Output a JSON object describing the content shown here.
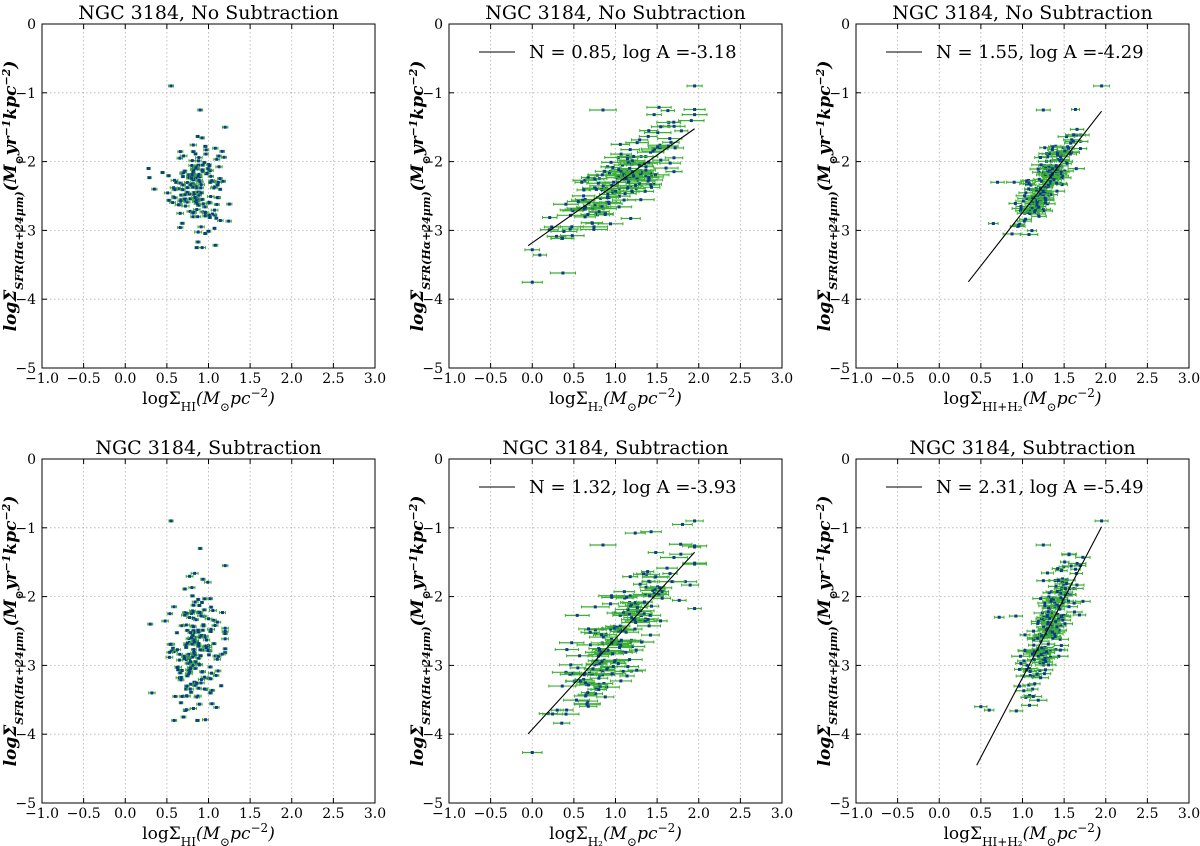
{
  "chart_data": [
    {
      "type": "scatter",
      "title": "NGC 3184, No Subtraction",
      "xlabel": "logΣ_HI(M_⊙pc^-2)",
      "ylabel": "logΣ_SFR(Hα+24μm)(M_⊙yr^-1kpc^-2)",
      "xlim": [
        -1.0,
        3.0
      ],
      "ylim": [
        -5,
        0
      ],
      "xticks": [
        "−1.0",
        "−0.5",
        "0.0",
        "0.5",
        "1.0",
        "1.5",
        "2.0",
        "2.5",
        "3.0"
      ],
      "yticks": [
        "0",
        "−1",
        "−2",
        "−3",
        "−4",
        "−5"
      ],
      "grid": true,
      "series": [
        {
          "x_center": 0.85,
          "x_spread": 0.16,
          "x_min": 0.25,
          "x_max": 1.25,
          "y_center": -2.35,
          "y_spread": 0.32,
          "y_min": -3.25,
          "y_max": -1.5,
          "count": 170,
          "xerr": 0.03,
          "extra_points": [
            [
              0.55,
              -0.9
            ],
            [
              0.9,
              -1.25
            ],
            [
              1.2,
              -1.5
            ],
            [
              0.28,
              -2.1
            ],
            [
              0.35,
              -2.4
            ]
          ]
        }
      ],
      "legend": "",
      "fit": null
    },
    {
      "type": "scatter",
      "title": "NGC 3184, No Subtraction",
      "xlabel": "logΣ_H2(M_⊙pc^-2)",
      "ylabel": "logΣ_SFR(Hα+24μm)(M_⊙yr^-1kpc^-2)",
      "xlim": [
        -1.0,
        3.0
      ],
      "ylim": [
        -5,
        0
      ],
      "xticks": [
        "−1.0",
        "−0.5",
        "0.0",
        "0.5",
        "1.0",
        "1.5",
        "2.0",
        "2.5",
        "3.0"
      ],
      "yticks": [
        "0",
        "−1",
        "−2",
        "−3",
        "−4",
        "−5"
      ],
      "grid": true,
      "series": [
        {
          "slope": 0.85,
          "intercept": -3.18,
          "x_center": 1.05,
          "x_spread": 0.38,
          "x_min": 0.0,
          "x_max": 1.95,
          "y_scatter": 0.25,
          "count": 190,
          "xerr": 0.12,
          "extra_points": [
            [
              1.95,
              -0.9
            ],
            [
              0.85,
              -1.25
            ],
            [
              1.4,
              -1.55
            ]
          ]
        }
      ],
      "legend": "N = 0.85, log A =-3.18",
      "legend_location": "upper right",
      "fit": {
        "slope": 0.85,
        "intercept": -3.18,
        "x_range": [
          -0.05,
          1.95
        ]
      }
    },
    {
      "type": "scatter",
      "title": "NGC 3184, No Subtraction",
      "xlabel": "logΣ_HI+H2(M_⊙pc^-2)",
      "ylabel": "logΣ_SFR(Hα+24μm)(M_⊙yr^-1kpc^-2)",
      "xlim": [
        -1.0,
        3.0
      ],
      "ylim": [
        -5,
        0
      ],
      "xticks": [
        "−1.0",
        "−0.5",
        "0.0",
        "0.5",
        "1.0",
        "1.5",
        "2.0",
        "2.5",
        "3.0"
      ],
      "yticks": [
        "0",
        "−1",
        "−2",
        "−3",
        "−4",
        "−5"
      ],
      "grid": true,
      "series": [
        {
          "slope": 1.55,
          "intercept": -4.29,
          "x_center": 1.3,
          "x_spread": 0.18,
          "x_min": 0.65,
          "x_max": 1.95,
          "y_scatter": 0.2,
          "count": 190,
          "xerr": 0.08,
          "extra_points": [
            [
              1.95,
              -0.9
            ],
            [
              1.25,
              -1.25
            ],
            [
              0.7,
              -2.3
            ],
            [
              0.9,
              -2.3
            ],
            [
              0.65,
              -2.9
            ]
          ]
        }
      ],
      "legend": "N = 1.55, log A =-4.29",
      "legend_location": "upper right",
      "fit": {
        "slope": 1.55,
        "intercept": -4.29,
        "x_range": [
          0.35,
          1.95
        ]
      }
    },
    {
      "type": "scatter",
      "title": "NGC 3184, Subtraction",
      "xlabel": "logΣ_HI(M_⊙pc^-2)",
      "ylabel": "logΣ_SFR(Hα+24μm)(M_⊙yr^-1kpc^-2)",
      "xlim": [
        -1.0,
        3.0
      ],
      "ylim": [
        -5,
        0
      ],
      "xticks": [
        "−1.0",
        "−0.5",
        "0.0",
        "0.5",
        "1.0",
        "1.5",
        "2.0",
        "2.5",
        "3.0"
      ],
      "yticks": [
        "0",
        "−1",
        "−2",
        "−3",
        "−4",
        "−5"
      ],
      "grid": true,
      "series": [
        {
          "x_center": 0.85,
          "x_spread": 0.16,
          "x_min": 0.3,
          "x_max": 1.2,
          "y_center": -2.8,
          "y_spread": 0.45,
          "y_min": -3.8,
          "y_max": -1.5,
          "count": 190,
          "xerr": 0.03,
          "extra_points": [
            [
              0.55,
              -0.9
            ],
            [
              0.9,
              -1.3
            ],
            [
              1.2,
              -1.55
            ],
            [
              0.3,
              -2.4
            ],
            [
              0.32,
              -3.4
            ],
            [
              0.7,
              -3.75
            ]
          ]
        }
      ],
      "legend": "",
      "fit": null
    },
    {
      "type": "scatter",
      "title": "NGC 3184, Subtraction",
      "xlabel": "logΣ_H2(M_⊙pc^-2)",
      "ylabel": "logΣ_SFR(Hα+24μm)(M_⊙yr^-1kpc^-2)",
      "xlim": [
        -1.0,
        3.0
      ],
      "ylim": [
        -5,
        0
      ],
      "xticks": [
        "−1.0",
        "−0.5",
        "0.0",
        "0.5",
        "1.0",
        "1.5",
        "2.0",
        "2.5",
        "3.0"
      ],
      "yticks": [
        "0",
        "−1",
        "−2",
        "−3",
        "−4",
        "−5"
      ],
      "grid": true,
      "series": [
        {
          "slope": 1.32,
          "intercept": -3.93,
          "x_center": 1.05,
          "x_spread": 0.38,
          "x_min": 0.0,
          "x_max": 1.95,
          "y_scatter": 0.38,
          "count": 200,
          "xerr": 0.12,
          "extra_points": [
            [
              1.95,
              -0.9
            ],
            [
              0.85,
              -1.25
            ],
            [
              0.3,
              -3.65
            ]
          ]
        }
      ],
      "legend": "N = 1.32, log A =-3.93",
      "legend_location": "upper right",
      "fit": {
        "slope": 1.32,
        "intercept": -3.93,
        "x_range": [
          -0.05,
          1.95
        ]
      }
    },
    {
      "type": "scatter",
      "title": "NGC 3184, Subtraction",
      "xlabel": "logΣ_HI+H2(M_⊙pc^-2)",
      "ylabel": "logΣ_SFR(Hα+24μm)(M_⊙yr^-1kpc^-2)",
      "xlim": [
        -1.0,
        3.0
      ],
      "ylim": [
        -5,
        0
      ],
      "xticks": [
        "−1.0",
        "−0.5",
        "0.0",
        "0.5",
        "1.0",
        "1.5",
        "2.0",
        "2.5",
        "3.0"
      ],
      "yticks": [
        "0",
        "−1",
        "−2",
        "−3",
        "−4",
        "−5"
      ],
      "grid": true,
      "series": [
        {
          "slope": 2.31,
          "intercept": -5.49,
          "x_center": 1.3,
          "x_spread": 0.17,
          "x_min": 0.45,
          "x_max": 1.95,
          "y_scatter": 0.3,
          "count": 200,
          "xerr": 0.08,
          "extra_points": [
            [
              1.95,
              -0.9
            ],
            [
              1.25,
              -1.25
            ],
            [
              0.72,
              -2.3
            ],
            [
              0.5,
              -3.6
            ],
            [
              0.6,
              -3.65
            ]
          ]
        }
      ],
      "legend": "N = 2.31, log A =-5.49",
      "legend_location": "upper right",
      "fit": {
        "slope": 2.31,
        "intercept": -5.49,
        "x_range": [
          0.45,
          1.95
        ]
      }
    }
  ],
  "colors": {
    "marker": "#0d3a8c",
    "errorbar": "#3cb034",
    "fit_line": "#000000",
    "grid": "#b0b0b0",
    "axes": "#000000"
  }
}
